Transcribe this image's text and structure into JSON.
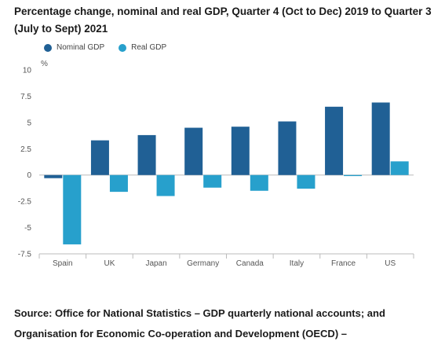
{
  "title": "Percentage change, nominal and real GDP, Quarter 4 (Oct to Dec) 2019 to Quarter 3 (July to Sept) 2021",
  "source": "Source: Office for National Statistics – GDP quarterly national accounts; and Organisation for Economic Co-operation and Development (OECD) –",
  "colors": {
    "nominal": "#206095",
    "real": "#27a0cc",
    "axis": "#bbbbbb",
    "grid": "#e6e6e6"
  },
  "chart_data": {
    "type": "bar",
    "categories": [
      "Spain",
      "UK",
      "Japan",
      "Germany",
      "Canada",
      "Italy",
      "France",
      "US"
    ],
    "series": [
      {
        "name": "Nominal GDP",
        "values": [
          -0.3,
          3.3,
          3.8,
          4.5,
          4.6,
          5.1,
          6.5,
          6.9
        ]
      },
      {
        "name": "Real GDP",
        "values": [
          -6.6,
          -1.6,
          -2.0,
          -1.2,
          -1.5,
          -1.3,
          -0.1,
          1.3
        ]
      }
    ],
    "ylabel": "%",
    "ylim": [
      -7.5,
      10
    ],
    "yticks": [
      "10",
      "7.5",
      "5",
      "2.5",
      "0",
      "-2.5",
      "-5",
      "-7.5"
    ],
    "ytick_values": [
      10,
      7.5,
      5,
      2.5,
      0,
      -2.5,
      -5,
      -7.5
    ],
    "grid": false,
    "legend": "top-left"
  }
}
